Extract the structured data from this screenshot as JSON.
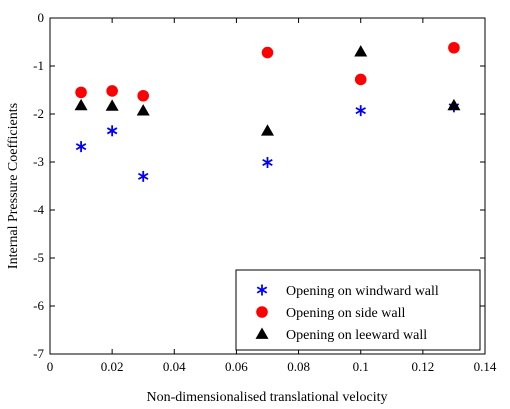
{
  "chart_data": {
    "type": "scatter",
    "title": "",
    "xlabel": "Non-dimensionalised translational velocity",
    "ylabel": "Internal Pressure Coefficients",
    "xlim": [
      0,
      0.14
    ],
    "ylim": [
      -7,
      0
    ],
    "xticks": [
      0,
      0.02,
      0.04,
      0.06,
      0.08,
      0.1,
      0.12,
      0.14
    ],
    "xtick_labels": [
      "0",
      "0.02",
      "0.04",
      "0.06",
      "0.08",
      "0.1",
      "0.12",
      "0.14"
    ],
    "yticks": [
      0,
      -1,
      -2,
      -3,
      -4,
      -5,
      -6,
      -7
    ],
    "ytick_labels": [
      "0",
      "-1",
      "-2",
      "-3",
      "-4",
      "-5",
      "-6",
      "-7"
    ],
    "grid": false,
    "legend_position": "bottom-right",
    "series": [
      {
        "name": "Opening on windward wall",
        "marker": "asterisk",
        "color": "#0000ff",
        "x": [
          0.01,
          0.02,
          0.03,
          0.07,
          0.1,
          0.13
        ],
        "y": [
          -2.68,
          -2.35,
          -3.3,
          -3.01,
          -1.93,
          -1.85
        ]
      },
      {
        "name": "Opening on side wall",
        "marker": "circle",
        "color": "#ff0000",
        "x": [
          0.01,
          0.02,
          0.03,
          0.07,
          0.1,
          0.13
        ],
        "y": [
          -1.55,
          -1.52,
          -1.62,
          -0.72,
          -1.28,
          -0.62
        ]
      },
      {
        "name": "Opening on leeward wall",
        "marker": "triangle",
        "color": "#000000",
        "x": [
          0.01,
          0.02,
          0.03,
          0.07,
          0.1,
          0.13
        ],
        "y": [
          -1.82,
          -1.83,
          -1.93,
          -2.35,
          -0.7,
          -1.82
        ]
      }
    ]
  }
}
